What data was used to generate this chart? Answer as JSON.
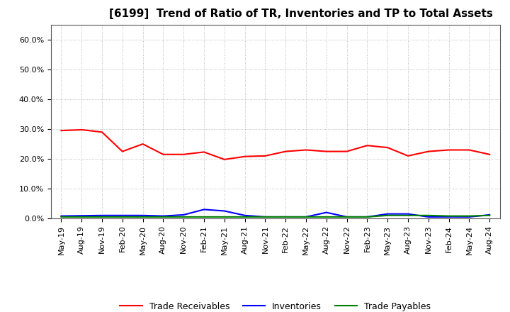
{
  "title": "[6199]  Trend of Ratio of TR, Inventories and TP to Total Assets",
  "x_labels": [
    "May-19",
    "Aug-19",
    "Nov-19",
    "Feb-20",
    "May-20",
    "Aug-20",
    "Nov-20",
    "Feb-21",
    "May-21",
    "Aug-21",
    "Nov-21",
    "Feb-22",
    "May-22",
    "Aug-22",
    "Nov-22",
    "Feb-23",
    "May-23",
    "Aug-23",
    "Nov-23",
    "Feb-24",
    "May-24",
    "Aug-24"
  ],
  "trade_receivables": [
    29.5,
    29.8,
    29.0,
    22.5,
    25.0,
    21.5,
    21.5,
    22.3,
    19.8,
    20.8,
    21.0,
    22.5,
    23.0,
    22.5,
    22.5,
    24.5,
    23.8,
    21.0,
    22.5,
    23.0,
    23.0,
    21.5
  ],
  "inventories": [
    0.8,
    0.9,
    1.0,
    1.0,
    1.0,
    0.8,
    1.2,
    3.0,
    2.5,
    1.0,
    0.5,
    0.5,
    0.5,
    2.0,
    0.5,
    0.5,
    1.5,
    1.5,
    0.5,
    0.5,
    0.5,
    1.2
  ],
  "trade_payables": [
    0.5,
    0.5,
    0.5,
    0.5,
    0.5,
    0.5,
    0.5,
    0.5,
    0.5,
    0.5,
    0.5,
    0.5,
    0.5,
    0.5,
    0.5,
    0.5,
    1.0,
    1.0,
    1.0,
    0.8,
    0.8,
    1.0
  ],
  "tr_color": "#ff0000",
  "inv_color": "#0000ff",
  "tp_color": "#008000",
  "ylim": [
    0,
    65
  ],
  "yticks": [
    0,
    10,
    20,
    30,
    40,
    50,
    60
  ],
  "ytick_labels": [
    "0.0%",
    "10.0%",
    "20.0%",
    "30.0%",
    "40.0%",
    "50.0%",
    "60.0%"
  ],
  "legend_labels": [
    "Trade Receivables",
    "Inventories",
    "Trade Payables"
  ],
  "bg_color": "#ffffff",
  "plot_bg_color": "#ffffff",
  "grid_color": "#aaaaaa",
  "title_fontsize": 11,
  "tick_fontsize": 8,
  "legend_fontsize": 9,
  "line_width": 1.5
}
